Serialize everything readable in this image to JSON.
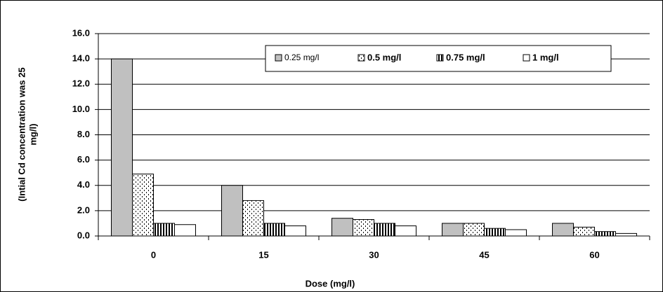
{
  "chart_data": {
    "type": "bar",
    "ylabel_lines": [
      "(Intial Cd concentration was 25",
      "mg/l)"
    ],
    "xlabel": "Dose (mg/l)",
    "categories": [
      "0",
      "15",
      "30",
      "45",
      "60"
    ],
    "series": [
      {
        "name": "0.25 mg/l",
        "color": "#c0c0c0",
        "values": [
          14.0,
          4.0,
          1.4,
          1.0,
          1.0
        ]
      },
      {
        "name": "0.5 mg/l",
        "color": "#ffffff",
        "values": [
          4.9,
          2.8,
          1.3,
          1.0,
          0.7
        ]
      },
      {
        "name": "0.75 mg/l",
        "color": "#ffffff",
        "values": [
          1.0,
          1.0,
          1.0,
          0.6,
          0.35
        ]
      },
      {
        "name": "1 mg/l",
        "color": "#ffffff",
        "values": [
          0.9,
          0.8,
          0.8,
          0.5,
          0.2
        ]
      }
    ],
    "ylim": [
      0,
      16
    ],
    "yticks": [
      {
        "value": 0,
        "label": "0.0"
      },
      {
        "value": 2,
        "label": "2.0"
      },
      {
        "value": 4,
        "label": "4.0"
      },
      {
        "value": 6,
        "label": "6.0"
      },
      {
        "value": 8,
        "label": "8.0"
      },
      {
        "value": 10,
        "label": "10.0"
      },
      {
        "value": 12,
        "label": "12.0"
      },
      {
        "value": 14,
        "label": "14.0"
      },
      {
        "value": 16,
        "label": "16.0"
      }
    ],
    "grid": true,
    "legend": "top"
  }
}
